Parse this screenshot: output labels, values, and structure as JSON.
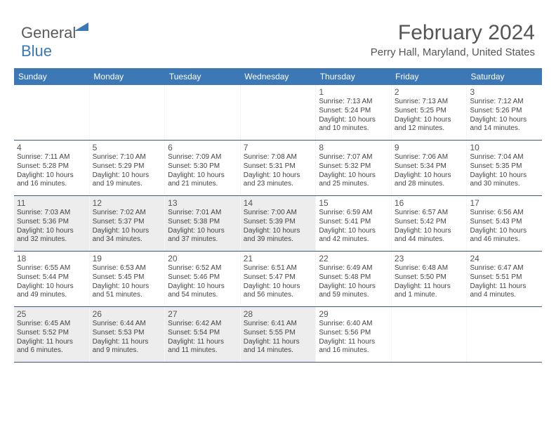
{
  "brand": {
    "part1": "General",
    "part2": "Blue"
  },
  "title": "February 2024",
  "location": "Perry Hall, Maryland, United States",
  "colors": {
    "header_bg": "#3b78b5",
    "shade_bg": "#ededed",
    "text": "#444444"
  },
  "day_headers": [
    "Sunday",
    "Monday",
    "Tuesday",
    "Wednesday",
    "Thursday",
    "Friday",
    "Saturday"
  ],
  "weeks": [
    [
      {
        "blank": true
      },
      {
        "blank": true
      },
      {
        "blank": true
      },
      {
        "blank": true
      },
      {
        "num": "1",
        "sunrise": "7:13 AM",
        "sunset": "5:24 PM",
        "daylight": "10 hours and 10 minutes."
      },
      {
        "num": "2",
        "sunrise": "7:13 AM",
        "sunset": "5:25 PM",
        "daylight": "10 hours and 12 minutes."
      },
      {
        "num": "3",
        "sunrise": "7:12 AM",
        "sunset": "5:26 PM",
        "daylight": "10 hours and 14 minutes."
      }
    ],
    [
      {
        "num": "4",
        "sunrise": "7:11 AM",
        "sunset": "5:28 PM",
        "daylight": "10 hours and 16 minutes."
      },
      {
        "num": "5",
        "sunrise": "7:10 AM",
        "sunset": "5:29 PM",
        "daylight": "10 hours and 19 minutes."
      },
      {
        "num": "6",
        "sunrise": "7:09 AM",
        "sunset": "5:30 PM",
        "daylight": "10 hours and 21 minutes."
      },
      {
        "num": "7",
        "sunrise": "7:08 AM",
        "sunset": "5:31 PM",
        "daylight": "10 hours and 23 minutes."
      },
      {
        "num": "8",
        "sunrise": "7:07 AM",
        "sunset": "5:32 PM",
        "daylight": "10 hours and 25 minutes."
      },
      {
        "num": "9",
        "sunrise": "7:06 AM",
        "sunset": "5:34 PM",
        "daylight": "10 hours and 28 minutes."
      },
      {
        "num": "10",
        "sunrise": "7:04 AM",
        "sunset": "5:35 PM",
        "daylight": "10 hours and 30 minutes."
      }
    ],
    [
      {
        "num": "11",
        "shaded": true,
        "sunrise": "7:03 AM",
        "sunset": "5:36 PM",
        "daylight": "10 hours and 32 minutes."
      },
      {
        "num": "12",
        "shaded": true,
        "sunrise": "7:02 AM",
        "sunset": "5:37 PM",
        "daylight": "10 hours and 34 minutes."
      },
      {
        "num": "13",
        "shaded": true,
        "sunrise": "7:01 AM",
        "sunset": "5:38 PM",
        "daylight": "10 hours and 37 minutes."
      },
      {
        "num": "14",
        "shaded": true,
        "sunrise": "7:00 AM",
        "sunset": "5:39 PM",
        "daylight": "10 hours and 39 minutes."
      },
      {
        "num": "15",
        "sunrise": "6:59 AM",
        "sunset": "5:41 PM",
        "daylight": "10 hours and 42 minutes."
      },
      {
        "num": "16",
        "sunrise": "6:57 AM",
        "sunset": "5:42 PM",
        "daylight": "10 hours and 44 minutes."
      },
      {
        "num": "17",
        "sunrise": "6:56 AM",
        "sunset": "5:43 PM",
        "daylight": "10 hours and 46 minutes."
      }
    ],
    [
      {
        "num": "18",
        "sunrise": "6:55 AM",
        "sunset": "5:44 PM",
        "daylight": "10 hours and 49 minutes."
      },
      {
        "num": "19",
        "sunrise": "6:53 AM",
        "sunset": "5:45 PM",
        "daylight": "10 hours and 51 minutes."
      },
      {
        "num": "20",
        "sunrise": "6:52 AM",
        "sunset": "5:46 PM",
        "daylight": "10 hours and 54 minutes."
      },
      {
        "num": "21",
        "sunrise": "6:51 AM",
        "sunset": "5:47 PM",
        "daylight": "10 hours and 56 minutes."
      },
      {
        "num": "22",
        "sunrise": "6:49 AM",
        "sunset": "5:48 PM",
        "daylight": "10 hours and 59 minutes."
      },
      {
        "num": "23",
        "sunrise": "6:48 AM",
        "sunset": "5:50 PM",
        "daylight": "11 hours and 1 minute."
      },
      {
        "num": "24",
        "sunrise": "6:47 AM",
        "sunset": "5:51 PM",
        "daylight": "11 hours and 4 minutes."
      }
    ],
    [
      {
        "num": "25",
        "shaded": true,
        "sunrise": "6:45 AM",
        "sunset": "5:52 PM",
        "daylight": "11 hours and 6 minutes."
      },
      {
        "num": "26",
        "shaded": true,
        "sunrise": "6:44 AM",
        "sunset": "5:53 PM",
        "daylight": "11 hours and 9 minutes."
      },
      {
        "num": "27",
        "shaded": true,
        "sunrise": "6:42 AM",
        "sunset": "5:54 PM",
        "daylight": "11 hours and 11 minutes."
      },
      {
        "num": "28",
        "shaded": true,
        "sunrise": "6:41 AM",
        "sunset": "5:55 PM",
        "daylight": "11 hours and 14 minutes."
      },
      {
        "num": "29",
        "sunrise": "6:40 AM",
        "sunset": "5:56 PM",
        "daylight": "11 hours and 16 minutes."
      },
      {
        "blank": true
      },
      {
        "blank": true
      }
    ]
  ]
}
